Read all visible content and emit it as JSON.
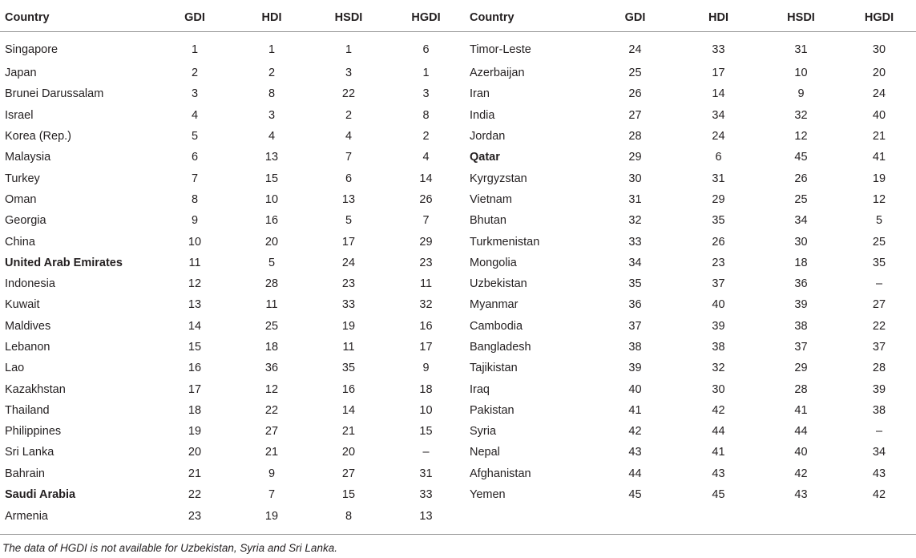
{
  "headers": [
    "Country",
    "GDI",
    "HDI",
    "HSDI",
    "HGDI"
  ],
  "rows": [
    {
      "left": {
        "country": "Singapore",
        "gdi": "1",
        "hdi": "1",
        "hsdi": "1",
        "hgdi": "6",
        "bold": false
      },
      "right": {
        "country": "Timor-Leste",
        "gdi": "24",
        "hdi": "33",
        "hsdi": "31",
        "hgdi": "30",
        "bold": false
      }
    },
    {
      "left": {
        "country": "Japan",
        "gdi": "2",
        "hdi": "2",
        "hsdi": "3",
        "hgdi": "1",
        "bold": false
      },
      "right": {
        "country": "Azerbaijan",
        "gdi": "25",
        "hdi": "17",
        "hsdi": "10",
        "hgdi": "20",
        "bold": false
      }
    },
    {
      "left": {
        "country": "Brunei Darussalam",
        "gdi": "3",
        "hdi": "8",
        "hsdi": "22",
        "hgdi": "3",
        "bold": false
      },
      "right": {
        "country": "Iran",
        "gdi": "26",
        "hdi": "14",
        "hsdi": "9",
        "hgdi": "24",
        "bold": false
      }
    },
    {
      "left": {
        "country": "Israel",
        "gdi": "4",
        "hdi": "3",
        "hsdi": "2",
        "hgdi": "8",
        "bold": false
      },
      "right": {
        "country": "India",
        "gdi": "27",
        "hdi": "34",
        "hsdi": "32",
        "hgdi": "40",
        "bold": false
      }
    },
    {
      "left": {
        "country": "Korea (Rep.)",
        "gdi": "5",
        "hdi": "4",
        "hsdi": "4",
        "hgdi": "2",
        "bold": false
      },
      "right": {
        "country": "Jordan",
        "gdi": "28",
        "hdi": "24",
        "hsdi": "12",
        "hgdi": "21",
        "bold": false
      }
    },
    {
      "left": {
        "country": "Malaysia",
        "gdi": "6",
        "hdi": "13",
        "hsdi": "7",
        "hgdi": "4",
        "bold": false
      },
      "right": {
        "country": "Qatar",
        "gdi": "29",
        "hdi": "6",
        "hsdi": "45",
        "hgdi": "41",
        "bold": true
      }
    },
    {
      "left": {
        "country": "Turkey",
        "gdi": "7",
        "hdi": "15",
        "hsdi": "6",
        "hgdi": "14",
        "bold": false
      },
      "right": {
        "country": "Kyrgyzstan",
        "gdi": "30",
        "hdi": "31",
        "hsdi": "26",
        "hgdi": "19",
        "bold": false
      }
    },
    {
      "left": {
        "country": "Oman",
        "gdi": "8",
        "hdi": "10",
        "hsdi": "13",
        "hgdi": "26",
        "bold": false
      },
      "right": {
        "country": "Vietnam",
        "gdi": "31",
        "hdi": "29",
        "hsdi": "25",
        "hgdi": "12",
        "bold": false
      }
    },
    {
      "left": {
        "country": "Georgia",
        "gdi": "9",
        "hdi": "16",
        "hsdi": "5",
        "hgdi": "7",
        "bold": false
      },
      "right": {
        "country": "Bhutan",
        "gdi": "32",
        "hdi": "35",
        "hsdi": "34",
        "hgdi": "5",
        "bold": false
      }
    },
    {
      "left": {
        "country": "China",
        "gdi": "10",
        "hdi": "20",
        "hsdi": "17",
        "hgdi": "29",
        "bold": false
      },
      "right": {
        "country": "Turkmenistan",
        "gdi": "33",
        "hdi": "26",
        "hsdi": "30",
        "hgdi": "25",
        "bold": false
      }
    },
    {
      "left": {
        "country": "United Arab Emirates",
        "gdi": "11",
        "hdi": "5",
        "hsdi": "24",
        "hgdi": "23",
        "bold": true
      },
      "right": {
        "country": "Mongolia",
        "gdi": "34",
        "hdi": "23",
        "hsdi": "18",
        "hgdi": "35",
        "bold": false
      }
    },
    {
      "left": {
        "country": "Indonesia",
        "gdi": "12",
        "hdi": "28",
        "hsdi": "23",
        "hgdi": "11",
        "bold": false
      },
      "right": {
        "country": "Uzbekistan",
        "gdi": "35",
        "hdi": "37",
        "hsdi": "36",
        "hgdi": "–",
        "bold": false
      }
    },
    {
      "left": {
        "country": "Kuwait",
        "gdi": "13",
        "hdi": "11",
        "hsdi": "33",
        "hgdi": "32",
        "bold": false
      },
      "right": {
        "country": "Myanmar",
        "gdi": "36",
        "hdi": "40",
        "hsdi": "39",
        "hgdi": "27",
        "bold": false
      }
    },
    {
      "left": {
        "country": "Maldives",
        "gdi": "14",
        "hdi": "25",
        "hsdi": "19",
        "hgdi": "16",
        "bold": false
      },
      "right": {
        "country": "Cambodia",
        "gdi": "37",
        "hdi": "39",
        "hsdi": "38",
        "hgdi": "22",
        "bold": false
      }
    },
    {
      "left": {
        "country": "Lebanon",
        "gdi": "15",
        "hdi": "18",
        "hsdi": "11",
        "hgdi": "17",
        "bold": false
      },
      "right": {
        "country": "Bangladesh",
        "gdi": "38",
        "hdi": "38",
        "hsdi": "37",
        "hgdi": "37",
        "bold": false
      }
    },
    {
      "left": {
        "country": "Lao",
        "gdi": "16",
        "hdi": "36",
        "hsdi": "35",
        "hgdi": "9",
        "bold": false
      },
      "right": {
        "country": "Tajikistan",
        "gdi": "39",
        "hdi": "32",
        "hsdi": "29",
        "hgdi": "28",
        "bold": false
      }
    },
    {
      "left": {
        "country": "Kazakhstan",
        "gdi": "17",
        "hdi": "12",
        "hsdi": "16",
        "hgdi": "18",
        "bold": false
      },
      "right": {
        "country": "Iraq",
        "gdi": "40",
        "hdi": "30",
        "hsdi": "28",
        "hgdi": "39",
        "bold": false
      }
    },
    {
      "left": {
        "country": "Thailand",
        "gdi": "18",
        "hdi": "22",
        "hsdi": "14",
        "hgdi": "10",
        "bold": false
      },
      "right": {
        "country": "Pakistan",
        "gdi": "41",
        "hdi": "42",
        "hsdi": "41",
        "hgdi": "38",
        "bold": false
      }
    },
    {
      "left": {
        "country": "Philippines",
        "gdi": "19",
        "hdi": "27",
        "hsdi": "21",
        "hgdi": "15",
        "bold": false
      },
      "right": {
        "country": "Syria",
        "gdi": "42",
        "hdi": "44",
        "hsdi": "44",
        "hgdi": "–",
        "bold": false
      }
    },
    {
      "left": {
        "country": "Sri Lanka",
        "gdi": "20",
        "hdi": "21",
        "hsdi": "20",
        "hgdi": "–",
        "bold": false
      },
      "right": {
        "country": "Nepal",
        "gdi": "43",
        "hdi": "41",
        "hsdi": "40",
        "hgdi": "34",
        "bold": false
      }
    },
    {
      "left": {
        "country": "Bahrain",
        "gdi": "21",
        "hdi": "9",
        "hsdi": "27",
        "hgdi": "31",
        "bold": false
      },
      "right": {
        "country": "Afghanistan",
        "gdi": "44",
        "hdi": "43",
        "hsdi": "42",
        "hgdi": "43",
        "bold": false
      }
    },
    {
      "left": {
        "country": "Saudi Arabia",
        "gdi": "22",
        "hdi": "7",
        "hsdi": "15",
        "hgdi": "33",
        "bold": true
      },
      "right": {
        "country": "Yemen",
        "gdi": "45",
        "hdi": "45",
        "hsdi": "43",
        "hgdi": "42",
        "bold": false
      }
    },
    {
      "left": {
        "country": "Armenia",
        "gdi": "23",
        "hdi": "19",
        "hsdi": "8",
        "hgdi": "13",
        "bold": false
      },
      "right": null
    }
  ],
  "footnote": "The data of HGDI is not available for Uzbekistan, Syria and Sri Lanka."
}
